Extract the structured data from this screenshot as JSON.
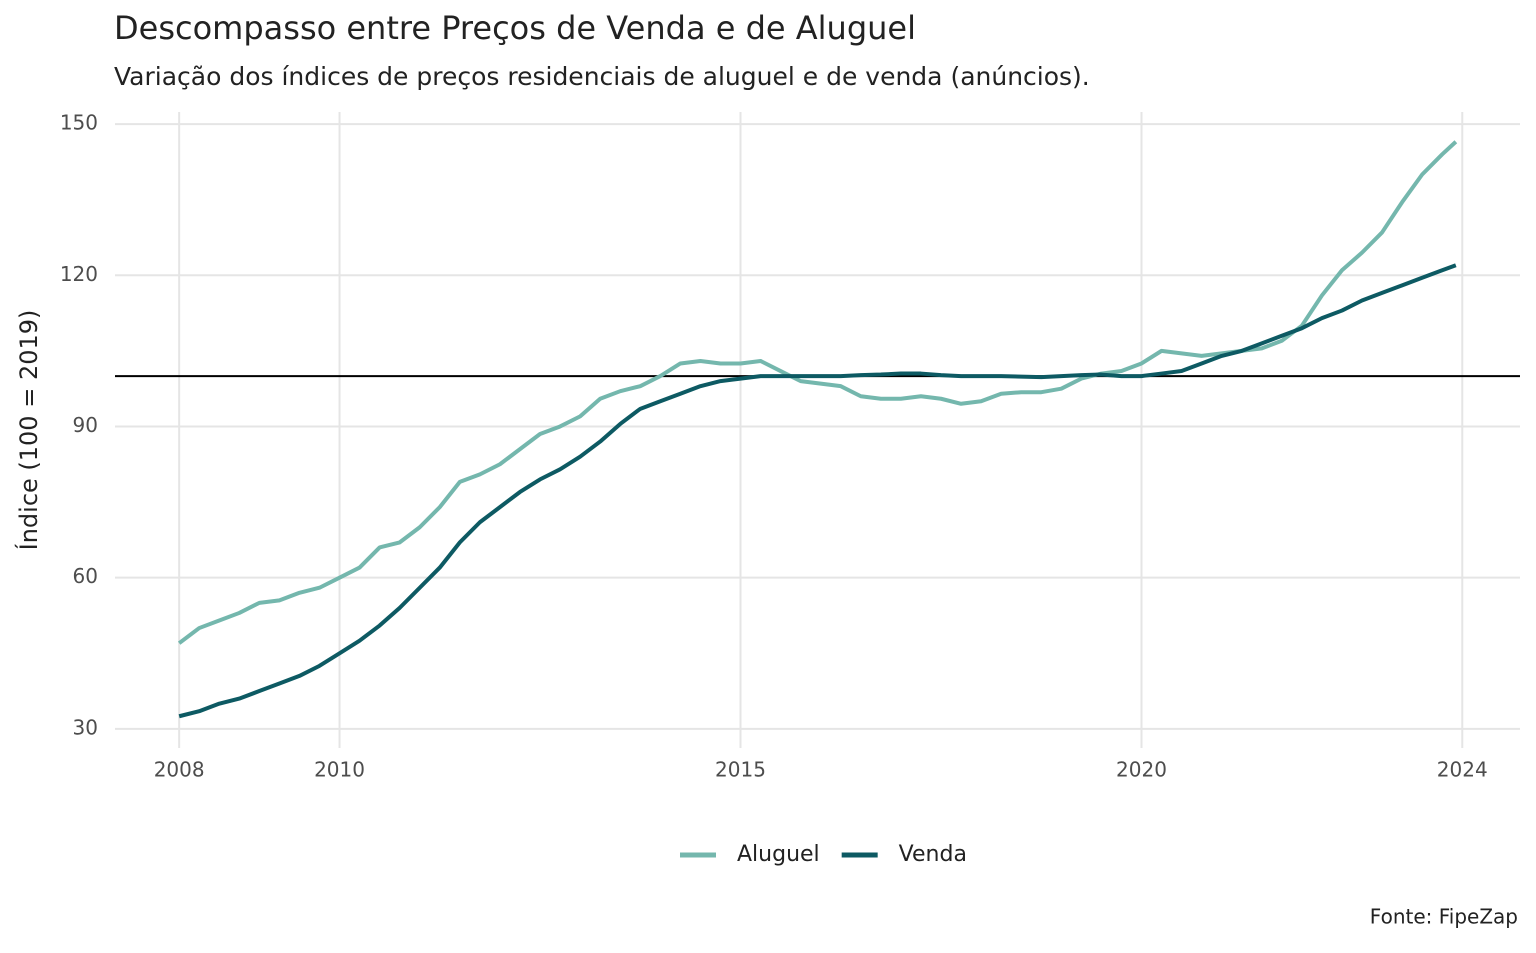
{
  "chart_data": {
    "type": "line",
    "title": "Descompasso entre Preços de Venda e de Aluguel",
    "subtitle": "Variação dos índices de preços residenciais de aluguel e de venda (anúncios).",
    "ylabel": "Índice (100 = 2019)",
    "caption": "Fonte: FipeZap",
    "x": [
      2008,
      2008.25,
      2008.5,
      2008.75,
      2009,
      2009.25,
      2009.5,
      2009.75,
      2010,
      2010.25,
      2010.5,
      2010.75,
      2011,
      2011.25,
      2011.5,
      2011.75,
      2012,
      2012.25,
      2012.5,
      2012.75,
      2013,
      2013.25,
      2013.5,
      2013.75,
      2014,
      2014.25,
      2014.5,
      2014.75,
      2015,
      2015.25,
      2015.5,
      2015.75,
      2016,
      2016.25,
      2016.5,
      2016.75,
      2017,
      2017.25,
      2017.5,
      2017.75,
      2018,
      2018.25,
      2018.5,
      2018.75,
      2019,
      2019.25,
      2019.5,
      2019.75,
      2020,
      2020.25,
      2020.5,
      2020.75,
      2021,
      2021.25,
      2021.5,
      2021.75,
      2022,
      2022.25,
      2022.5,
      2022.75,
      2023,
      2023.25,
      2023.5,
      2023.75,
      2023.92
    ],
    "series": [
      {
        "name": "Aluguel",
        "color": "#74b7ad",
        "values": [
          47,
          50,
          51.5,
          53,
          55,
          55.5,
          57,
          58,
          60,
          62,
          66,
          67,
          70,
          74,
          79,
          80.5,
          82.5,
          85.5,
          88.5,
          90,
          92,
          95.5,
          97,
          98,
          100,
          102.5,
          103,
          102.5,
          102.5,
          103,
          101,
          99,
          98.5,
          98,
          96,
          95.5,
          95.5,
          96,
          95.5,
          94.5,
          95,
          96.5,
          96.8,
          96.8,
          97.5,
          99.5,
          100.5,
          101,
          102.5,
          105,
          104.5,
          104,
          104.5,
          105,
          105.5,
          107,
          110,
          116,
          121,
          124.5,
          128.5,
          134.5,
          140,
          144,
          146.5
        ]
      },
      {
        "name": "Venda",
        "color": "#0d5a63",
        "values": [
          32.5,
          33.5,
          35,
          36,
          37.5,
          39,
          40.5,
          42.5,
          45,
          47.5,
          50.5,
          54,
          58,
          62,
          67,
          71,
          74,
          77,
          79.5,
          81.5,
          84,
          87,
          90.5,
          93.5,
          95,
          96.5,
          98,
          99,
          99.5,
          100,
          100,
          100,
          100,
          100,
          100.2,
          100.3,
          100.5,
          100.5,
          100.2,
          100,
          100,
          100,
          99.9,
          99.8,
          100,
          100.2,
          100.3,
          100,
          100,
          100.5,
          101,
          102.5,
          104,
          105,
          106.5,
          108,
          109.5,
          111.5,
          113,
          115,
          116.5,
          118,
          119.5,
          121,
          122
        ]
      }
    ],
    "reference_line": 100,
    "xlim": [
      2007.2,
      2024.72
    ],
    "xticks": [
      2008,
      2010,
      2015,
      2020,
      2024
    ],
    "ylim": [
      26.2,
      152.4
    ],
    "yticks": [
      30,
      60,
      90,
      120,
      150
    ],
    "grid": true,
    "legend": "bottom"
  }
}
